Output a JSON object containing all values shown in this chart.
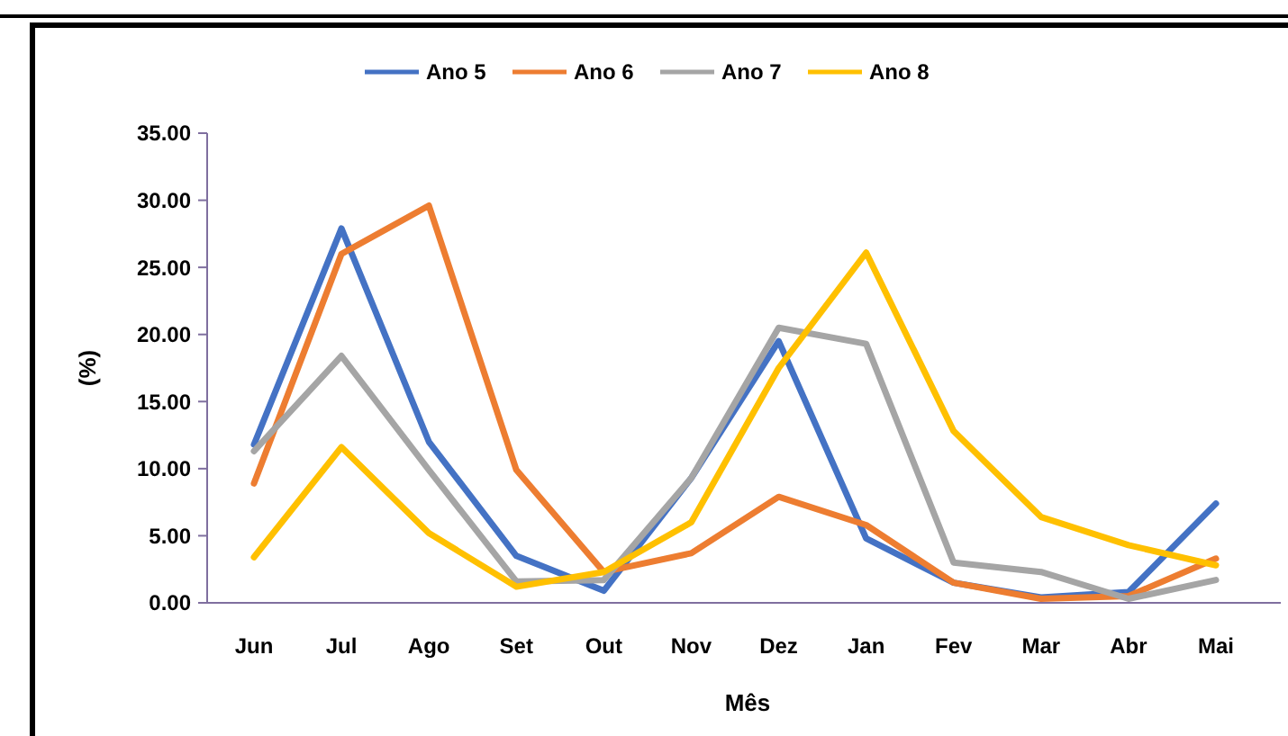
{
  "chart_data": {
    "type": "line",
    "xlabel": "Mês",
    "ylabel": "(%)",
    "categories": [
      "Jun",
      "Jul",
      "Ago",
      "Set",
      "Out",
      "Nov",
      "Dez",
      "Jan",
      "Fev",
      "Mar",
      "Abr",
      "Mai"
    ],
    "series": [
      {
        "name": "Ano 5",
        "color": "#4472c4",
        "values": [
          11.8,
          27.9,
          12,
          3.5,
          0.9,
          9.3,
          19.5,
          4.8,
          1.5,
          0.4,
          0.8,
          7.4
        ]
      },
      {
        "name": "Ano 6",
        "color": "#ed7d31",
        "values": [
          8.9,
          26,
          29.6,
          9.9,
          2.3,
          3.7,
          7.9,
          5.8,
          1.5,
          0.3,
          0.5,
          3.3
        ]
      },
      {
        "name": "Ano 7",
        "color": "#a5a5a5",
        "values": [
          11.3,
          18.4,
          9.9,
          1.6,
          1.7,
          9.3,
          20.5,
          19.3,
          3,
          2.3,
          0.3,
          1.7
        ]
      },
      {
        "name": "Ano 8",
        "color": "#ffc000",
        "values": [
          3.4,
          11.6,
          5.2,
          1.2,
          2.3,
          6,
          17.5,
          26.1,
          12.8,
          6.4,
          4.3,
          2.8
        ]
      }
    ],
    "ylim": [
      0,
      35
    ],
    "yticks": [
      {
        "value": 0,
        "label": "0.00"
      },
      {
        "value": 5,
        "label": "5.00"
      },
      {
        "value": 10,
        "label": "10.00"
      },
      {
        "value": 15,
        "label": "15.00"
      },
      {
        "value": 20,
        "label": "20.00"
      },
      {
        "value": 25,
        "label": "25.00"
      },
      {
        "value": 30,
        "label": "30.00"
      },
      {
        "value": 35,
        "label": "35.00"
      }
    ],
    "grid": false,
    "legend": "top",
    "marker": "none",
    "line_style": "solid"
  }
}
